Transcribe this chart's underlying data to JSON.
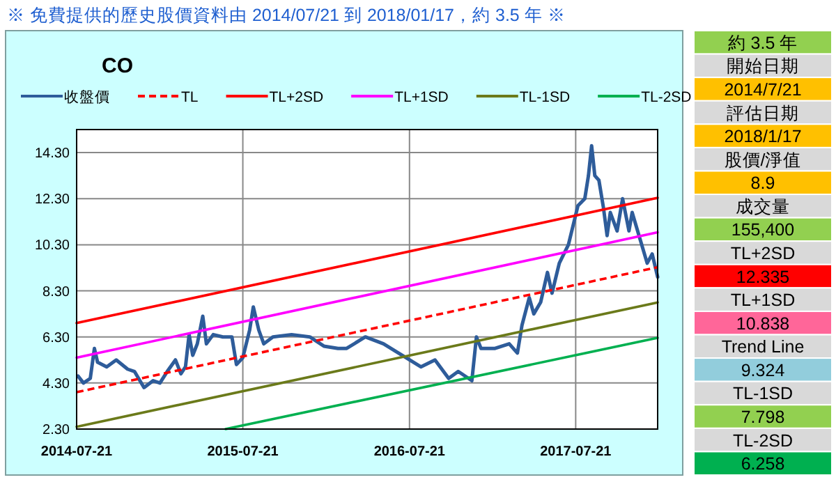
{
  "chart_data": [
    {
      "type": "line",
      "title": "CO",
      "annotations": [
        "※ 免費提供的歷史股價資料由 2014/07/21 到 2018/01/17，約 3.5 年 ※"
      ],
      "legend": "top",
      "grid": true,
      "marker": "none",
      "xlim": [
        "2014-07-21",
        "2018-01-17"
      ],
      "xticks": [
        "2014-07-21",
        "2015-07-21",
        "2016-07-21",
        "2017-07-21"
      ],
      "ylim": [
        2.3,
        15.3
      ],
      "yticks": [
        {
          "value": 2.3,
          "label": "2.30"
        },
        {
          "value": 4.3,
          "label": "4.30"
        },
        {
          "value": 6.3,
          "label": "6.30"
        },
        {
          "value": 8.3,
          "label": "8.30"
        },
        {
          "value": 10.3,
          "label": "10.30"
        },
        {
          "value": 12.3,
          "label": "12.30"
        },
        {
          "value": 14.3,
          "label": "14.30"
        }
      ],
      "series": [
        {
          "name": "收盤價",
          "color": "#2e5c9a",
          "line_style": "solid",
          "x": [
            "2014-07-24",
            "2014-08-05",
            "2014-08-20",
            "2014-08-29",
            "2014-09-05",
            "2014-09-25",
            "2014-10-16",
            "2014-11-10",
            "2014-11-25",
            "2014-12-16",
            "2015-01-05",
            "2015-01-20",
            "2015-02-05",
            "2015-02-23",
            "2015-03-07",
            "2015-03-17",
            "2015-03-25",
            "2015-04-02",
            "2015-04-12",
            "2015-04-24",
            "2015-05-02",
            "2015-05-17",
            "2015-06-07",
            "2015-06-27",
            "2015-07-07",
            "2015-07-21",
            "2015-08-05",
            "2015-08-13",
            "2015-08-25",
            "2015-09-05",
            "2015-09-25",
            "2015-11-05",
            "2015-12-15",
            "2016-01-15",
            "2016-02-15",
            "2016-03-05",
            "2016-04-15",
            "2016-05-25",
            "2016-07-05",
            "2016-08-15",
            "2016-09-15",
            "2016-10-15",
            "2016-11-05",
            "2016-12-05",
            "2016-12-15",
            "2016-12-25",
            "2017-01-25",
            "2017-02-25",
            "2017-03-15",
            "2017-03-25",
            "2017-04-10",
            "2017-04-20",
            "2017-05-05",
            "2017-05-20",
            "2017-05-30",
            "2017-06-15",
            "2017-07-05",
            "2017-07-26",
            "2017-08-10",
            "2017-08-18",
            "2017-08-25",
            "2017-09-01",
            "2017-09-10",
            "2017-09-20",
            "2017-09-28",
            "2017-10-05",
            "2017-10-20",
            "2017-11-01",
            "2017-11-15",
            "2017-11-22",
            "2017-12-10",
            "2017-12-25",
            "2018-01-05",
            "2018-01-17"
          ],
          "values": [
            4.6,
            4.3,
            4.5,
            5.8,
            5.2,
            5.0,
            5.3,
            4.9,
            4.8,
            4.1,
            4.4,
            4.3,
            4.8,
            5.3,
            4.7,
            5.0,
            6.4,
            5.5,
            6.0,
            7.2,
            6.0,
            6.4,
            6.3,
            6.3,
            5.1,
            5.4,
            6.6,
            7.6,
            6.6,
            6.0,
            6.3,
            6.4,
            6.3,
            5.9,
            5.8,
            5.8,
            6.3,
            6.0,
            5.5,
            5.0,
            5.3,
            4.5,
            4.8,
            4.4,
            6.3,
            5.8,
            5.8,
            6.0,
            5.6,
            6.8,
            8.0,
            7.3,
            7.8,
            9.1,
            8.2,
            9.5,
            10.3,
            12.0,
            12.3,
            13.3,
            14.6,
            13.3,
            13.1,
            11.9,
            10.7,
            11.7,
            10.9,
            12.3,
            10.9,
            11.7,
            10.5,
            9.5,
            9.9,
            8.9
          ]
        },
        {
          "name": "TL",
          "color": "#ff0000",
          "line_style": "dashed",
          "x": [
            "2014-07-21",
            "2018-01-17"
          ],
          "values": [
            3.9,
            9.324
          ]
        },
        {
          "name": "TL+2SD",
          "color": "#ff0000",
          "line_style": "solid",
          "x": [
            "2014-07-21",
            "2018-01-17"
          ],
          "values": [
            6.9,
            12.335
          ]
        },
        {
          "name": "TL+1SD",
          "color": "#ff00ff",
          "line_style": "solid",
          "x": [
            "2014-07-21",
            "2018-01-17"
          ],
          "values": [
            5.4,
            10.838
          ]
        },
        {
          "name": "TL-1SD",
          "color": "#6b7a1a",
          "line_style": "solid",
          "x": [
            "2014-07-21",
            "2018-01-17"
          ],
          "values": [
            2.4,
            7.798
          ]
        },
        {
          "name": "TL-2SD",
          "color": "#00b050",
          "line_style": "solid",
          "x": [
            "2015-06-13",
            "2018-01-17"
          ],
          "values": [
            2.3,
            6.258
          ]
        }
      ]
    },
    {
      "type": "other",
      "annotations": [
        "約 3.5 年",
        "開始日期",
        "2014/7/21",
        "評估日期",
        "2018/1/17",
        "股價/淨值",
        "8.9",
        "成交量",
        "155,400",
        "TL+2SD",
        "12.335",
        "TL+1SD",
        "10.838",
        "Trend Line",
        "9.324",
        "TL-1SD",
        "7.798",
        "TL-2SD",
        "6.258"
      ],
      "colors": [
        "#92d050",
        "#d9d9d9",
        "#ffc000",
        "#d9d9d9",
        "#ffc000",
        "#d9d9d9",
        "#ffc000",
        "#d9d9d9",
        "#92d050",
        "#d9d9d9",
        "#ff0000",
        "#d9d9d9",
        "#ff6699",
        "#d9d9d9",
        "#92cddc",
        "#d9d9d9",
        "#92d050",
        "#d9d9d9",
        "#00b050"
      ]
    }
  ]
}
